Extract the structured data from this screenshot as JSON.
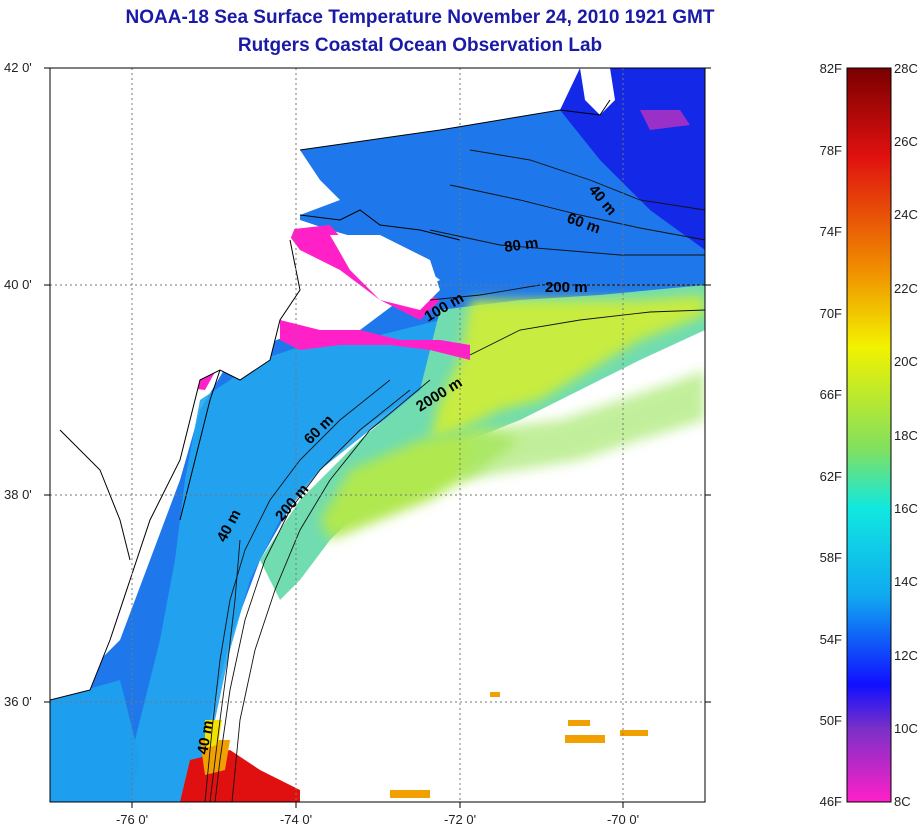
{
  "title": {
    "line1": "NOAA-18 Sea Surface Temperature November 24, 2010 1921 GMT",
    "line2": "Rutgers Coastal Ocean Observation Lab"
  },
  "map": {
    "lat_labels": [
      "42 0'",
      "40 0'",
      "38 0'",
      "36 0'"
    ],
    "lon_labels": [
      "-76 0'",
      "-74 0'",
      "-72 0'",
      "-70 0'"
    ],
    "isobath_labels": [
      "40 m",
      "60 m",
      "80 m",
      "200 m",
      "100 m",
      "2000 m",
      "60 m",
      "200 m",
      "40 m",
      "40 m"
    ]
  },
  "colorbar": {
    "fahrenheit_labels": [
      "82F",
      "78F",
      "74F",
      "70F",
      "66F",
      "62F",
      "58F",
      "54F",
      "50F",
      "46F"
    ],
    "celsius_labels": [
      "28C",
      "26C",
      "24C",
      "22C",
      "20C",
      "18C",
      "16C",
      "14C",
      "12C",
      "10C",
      "8C"
    ],
    "colors": {
      "top": "#7a0000",
      "red": "#e01010",
      "orange": "#f08a00",
      "yellow": "#f2f200",
      "green": "#80e060",
      "cyan": "#10e8e0",
      "skyblue": "#10a8f0",
      "blue": "#1010ff",
      "purple": "#7a30c8",
      "magenta": "#ff20c8"
    }
  }
}
